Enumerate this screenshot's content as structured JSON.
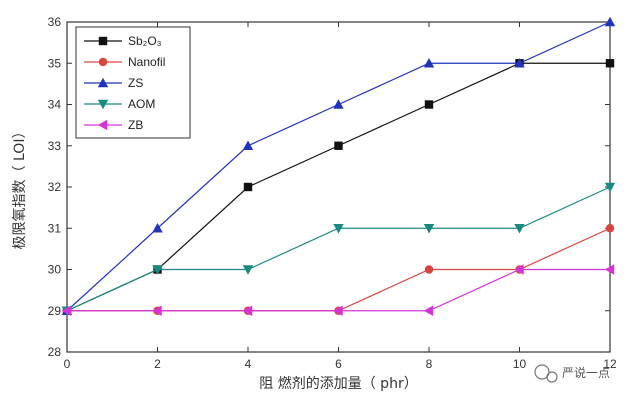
{
  "chart_data": {
    "type": "line",
    "x": [
      0,
      2,
      4,
      6,
      8,
      10,
      12
    ],
    "xlim": [
      0,
      12
    ],
    "ylim": [
      28,
      36
    ],
    "xticks": [
      "0",
      "2",
      "4",
      "6",
      "8",
      "10",
      "12"
    ],
    "yticks": [
      "28",
      "29",
      "30",
      "31",
      "32",
      "33",
      "34",
      "35",
      "36"
    ],
    "xlabel": "阻 燃剂的添加量（ phr）",
    "ylabel": "极限氧指数（ LOI）",
    "grid": false,
    "legend_position": "top-left",
    "series": [
      {
        "name": "Sb₂O₃",
        "color": "#111111",
        "marker": "square",
        "values": [
          29,
          30,
          32,
          33,
          34,
          35,
          35
        ]
      },
      {
        "name": "Nanofil",
        "color": "#d9453c",
        "marker": "circle",
        "values": [
          29,
          29,
          29,
          29,
          30,
          30,
          31
        ]
      },
      {
        "name": "ZS",
        "color": "#2233bb",
        "marker": "triangle-up",
        "values": [
          29,
          31,
          33,
          34,
          35,
          35,
          36
        ]
      },
      {
        "name": "AOM",
        "color": "#1a8a80",
        "marker": "triangle-down",
        "values": [
          29,
          30,
          30,
          31,
          31,
          31,
          32
        ]
      },
      {
        "name": "ZB",
        "color": "#d633d6",
        "marker": "triangle-left",
        "values": [
          29,
          29,
          29,
          29,
          29,
          30,
          30
        ]
      }
    ]
  },
  "watermark": {
    "text": "严说一点",
    "icon": "wechat-icon"
  }
}
